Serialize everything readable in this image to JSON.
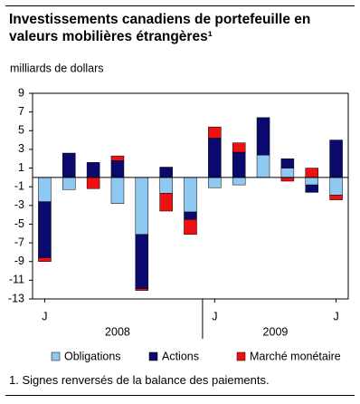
{
  "chart_data": {
    "type": "bar",
    "stacked": true,
    "title": "Investissements canadiens de portefeuille en valeurs mobilières étrangères¹",
    "y_label": "milliards de dollars",
    "categories": [
      "J",
      null,
      null,
      null,
      null,
      null,
      null,
      "J",
      null,
      null,
      null,
      null,
      "J"
    ],
    "year_labels": [
      "2008",
      "2009"
    ],
    "series": [
      {
        "name": "Obligations",
        "color": "#8fc8f0",
        "values": [
          -2.6,
          -1.3,
          0,
          -2.8,
          -6.1,
          -1.7,
          -3.7,
          -1.1,
          -0.8,
          2.4,
          1.0,
          -0.8,
          -1.9
        ]
      },
      {
        "name": "Actions",
        "color": "#0a0a6e",
        "values": [
          -6.0,
          2.6,
          1.6,
          1.8,
          -5.8,
          1.1,
          -0.8,
          4.2,
          2.7,
          4.0,
          1.0,
          -0.8,
          4.0
        ]
      },
      {
        "name": "Marché monétaire",
        "color": "#ee1111",
        "values": [
          -0.4,
          0,
          -1.2,
          0.5,
          -0.2,
          -1.9,
          -1.6,
          1.2,
          1.0,
          0,
          -0.4,
          1.0,
          -0.5
        ]
      }
    ],
    "ylim": [
      -13,
      9
    ],
    "yticks": [
      -13,
      -11,
      -9,
      -7,
      -5,
      -3,
      -1,
      1,
      3,
      5,
      7,
      9
    ],
    "footnote": "1. Signes renversés de la balance des paiements."
  }
}
